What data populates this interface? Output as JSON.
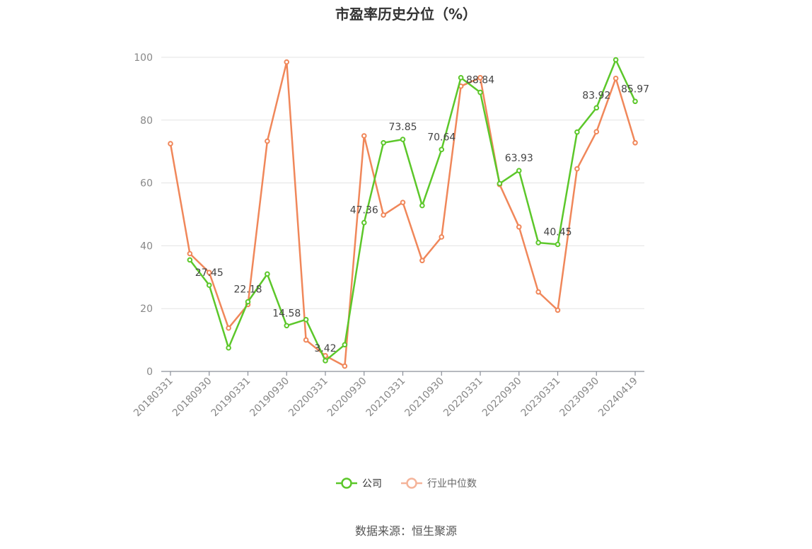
{
  "chart_data": {
    "type": "line",
    "title": "市盈率历史分位（%）",
    "x": [
      "20180331",
      "20180630",
      "20180930",
      "20181231",
      "20190331",
      "20190630",
      "20190930",
      "20191231",
      "20200331",
      "20200630",
      "20200930",
      "20201231",
      "20210331",
      "20210630",
      "20210930",
      "20211231",
      "20220331",
      "20220630",
      "20220930",
      "20221231",
      "20230331",
      "20230630",
      "20230930",
      "20231231",
      "20240419"
    ],
    "x_tick_labels": [
      "20180331",
      "20180930",
      "20190331",
      "20190930",
      "20200331",
      "20200930",
      "20210331",
      "20210930",
      "20220331",
      "20220930",
      "20230331",
      "20230930",
      "20240419"
    ],
    "ylim": [
      0,
      100
    ],
    "y_ticks": [
      0,
      20,
      40,
      60,
      80,
      100
    ],
    "grid": true,
    "legend_position": "bottom",
    "series": [
      {
        "name": "公司",
        "color": "#5cc72a",
        "values": [
          null,
          35.5,
          27.45,
          7.5,
          22.18,
          31.0,
          14.58,
          16.5,
          3.42,
          8.5,
          47.36,
          72.8,
          73.85,
          52.8,
          70.64,
          93.5,
          88.84,
          59.8,
          63.93,
          41.0,
          40.45,
          76.2,
          83.92,
          99.2,
          85.97
        ],
        "labels": [
          null,
          null,
          "27.45",
          null,
          "22.18",
          null,
          "14.58",
          null,
          "3.42",
          null,
          "47.36",
          null,
          "73.85",
          null,
          "70.64",
          null,
          "88.84",
          null,
          "63.93",
          null,
          "40.45",
          null,
          "83.92",
          null,
          "85.97"
        ]
      },
      {
        "name": "行业中位数",
        "color": "#f0875a",
        "values": [
          72.5,
          37.5,
          31.5,
          13.8,
          21.3,
          73.3,
          98.5,
          10.0,
          5.0,
          1.7,
          75.0,
          49.8,
          53.8,
          35.3,
          42.8,
          90.8,
          93.5,
          59.5,
          46.0,
          25.3,
          19.5,
          64.5,
          76.3,
          93.3,
          72.8
        ]
      }
    ],
    "source": "数据来源：恒生聚源"
  },
  "legend": {
    "items": [
      {
        "label": "公司",
        "color": "#5cc72a"
      },
      {
        "label": "行业中位数",
        "color": "#f5b49a"
      }
    ]
  }
}
